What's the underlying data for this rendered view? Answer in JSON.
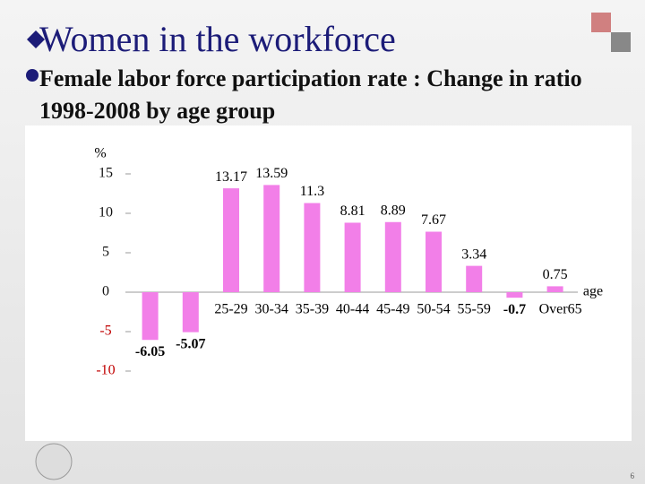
{
  "header": {
    "title": "Women in the workforce",
    "subtitle": "Female labor force participation rate : Change in ratio 1998-2008 by age group"
  },
  "chart_data": {
    "type": "bar",
    "y_label": "%",
    "x_label": "age",
    "categories": [
      null,
      null,
      "25-29",
      "30-34",
      "35-39",
      "40-44",
      "45-49",
      "50-54",
      "55-59",
      null,
      "Over65"
    ],
    "values": [
      -6.05,
      -5.07,
      13.17,
      13.59,
      11.3,
      8.81,
      8.89,
      7.67,
      3.34,
      -0.7,
      0.75
    ],
    "color": "#f27fe8",
    "ylim": [
      -10,
      15
    ],
    "yticks": [
      15,
      10,
      5,
      0,
      -5,
      -10
    ]
  },
  "footer": {
    "page_number": "6"
  }
}
